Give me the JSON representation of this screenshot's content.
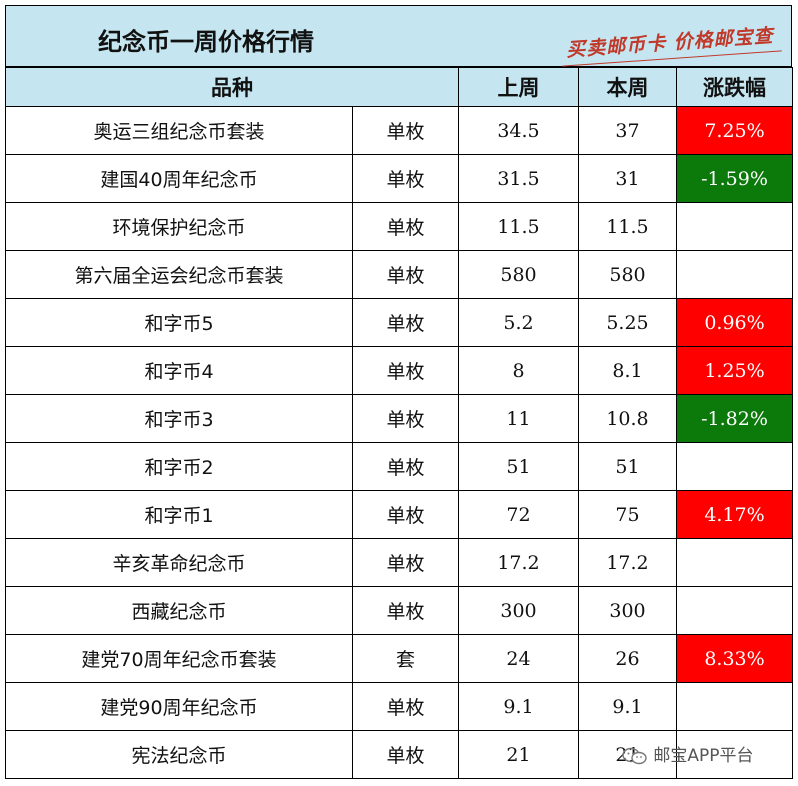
{
  "title": "纪念币一周价格行情",
  "slogan": "买卖邮币卡 价格邮宝查",
  "headers": {
    "variety": "品种",
    "last_week": "上周",
    "this_week": "本周",
    "change": "涨跌幅"
  },
  "colors": {
    "header_bg": "#c5e6f0",
    "up": "#ff0000",
    "down": "#0b7a0b"
  },
  "rows": [
    {
      "name": "奥运三组纪念币套装",
      "unit": "单枚",
      "last": "34.5",
      "this": "37",
      "change": "7.25%",
      "trend": "up"
    },
    {
      "name": "建国40周年纪念币",
      "unit": "单枚",
      "last": "31.5",
      "this": "31",
      "change": "-1.59%",
      "trend": "down"
    },
    {
      "name": "环境保护纪念币",
      "unit": "单枚",
      "last": "11.5",
      "this": "11.5",
      "change": "",
      "trend": "none"
    },
    {
      "name": "第六届全运会纪念币套装",
      "unit": "单枚",
      "last": "580",
      "this": "580",
      "change": "",
      "trend": "none"
    },
    {
      "name": "和字币5",
      "unit": "单枚",
      "last": "5.2",
      "this": "5.25",
      "change": "0.96%",
      "trend": "up"
    },
    {
      "name": "和字币4",
      "unit": "单枚",
      "last": "8",
      "this": "8.1",
      "change": "1.25%",
      "trend": "up"
    },
    {
      "name": "和字币3",
      "unit": "单枚",
      "last": "11",
      "this": "10.8",
      "change": "-1.82%",
      "trend": "down"
    },
    {
      "name": "和字币2",
      "unit": "单枚",
      "last": "51",
      "this": "51",
      "change": "",
      "trend": "none"
    },
    {
      "name": "和字币1",
      "unit": "单枚",
      "last": "72",
      "this": "75",
      "change": "4.17%",
      "trend": "up"
    },
    {
      "name": "辛亥革命纪念币",
      "unit": "单枚",
      "last": "17.2",
      "this": "17.2",
      "change": "",
      "trend": "none"
    },
    {
      "name": "西藏纪念币",
      "unit": "单枚",
      "last": "300",
      "this": "300",
      "change": "",
      "trend": "none"
    },
    {
      "name": "建党70周年纪念币套装",
      "unit": "套",
      "last": "24",
      "this": "26",
      "change": "8.33%",
      "trend": "up"
    },
    {
      "name": "建党90周年纪念币",
      "unit": "单枚",
      "last": "9.1",
      "this": "9.1",
      "change": "",
      "trend": "none"
    },
    {
      "name": "宪法纪念币",
      "unit": "单枚",
      "last": "21",
      "this": "21",
      "change": "",
      "trend": "none"
    }
  ],
  "watermark": {
    "icon": "wechat-icon",
    "text": "邮宝APP平台"
  }
}
